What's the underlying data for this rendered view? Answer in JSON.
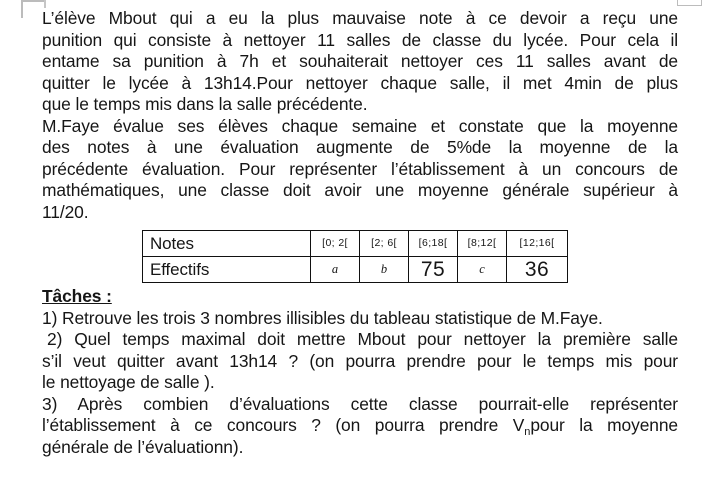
{
  "colors": {
    "text": "#161616",
    "table_border": "#111111",
    "frame_marks": "#bcbcbc",
    "background": "#ffffff"
  },
  "doc": {
    "para1": [
      "L’élève Mbout qui a eu la plus mauvaise note à ce devoir a reçu une",
      "punition qui consiste à nettoyer 11 salles de classe du lycée. Pour cela il",
      "entame sa punition à 7h et souhaiterait nettoyer ces 11 salles avant de",
      "quitter le lycée à 13h14.Pour nettoyer chaque salle, il met 4min de plus",
      "que le temps mis dans la salle précédente."
    ],
    "para2": [
      "M.Faye évalue ses élèves chaque semaine et constate que la moyenne",
      "des notes à une évaluation augmente de 5%de la moyenne de la",
      "précédente évaluation. Pour représenter l’établissement à un concours de",
      "mathématiques, une classe doit avoir une moyenne générale supérieur à",
      "11/20."
    ],
    "table": {
      "rows": [
        {
          "label": "Notes",
          "cells": [
            "[0; 2[",
            "[2; 6[",
            "[6;18[",
            "[8;12[",
            "[12;16["
          ]
        },
        {
          "label": "Effectifs",
          "cells": [
            "a",
            "b",
            "75",
            "c",
            "36"
          ]
        }
      ]
    },
    "tasks_heading": "Tâches :",
    "task1": "1) Retrouve les trois 3 nombres illisibles du tableau statistique de M.Faye.",
    "task2": {
      "l1": "2) Quel temps maximal doit mettre Mbout pour nettoyer la première salle",
      "l2": "s’il veut quitter avant 13h14 ? (on pourra prendre pour le temps mis pour",
      "l3": "le nettoyage de salle )."
    },
    "task3": {
      "l1": "3) Après combien d’évaluations cette classe pourrait-elle représenter",
      "l2_prefix": "l’établissement à ce concours ? (on pourra prendre V",
      "sub": "n",
      "l2_suffix": "pour la moyenne",
      "l3": "générale de l’évaluationn)."
    }
  }
}
